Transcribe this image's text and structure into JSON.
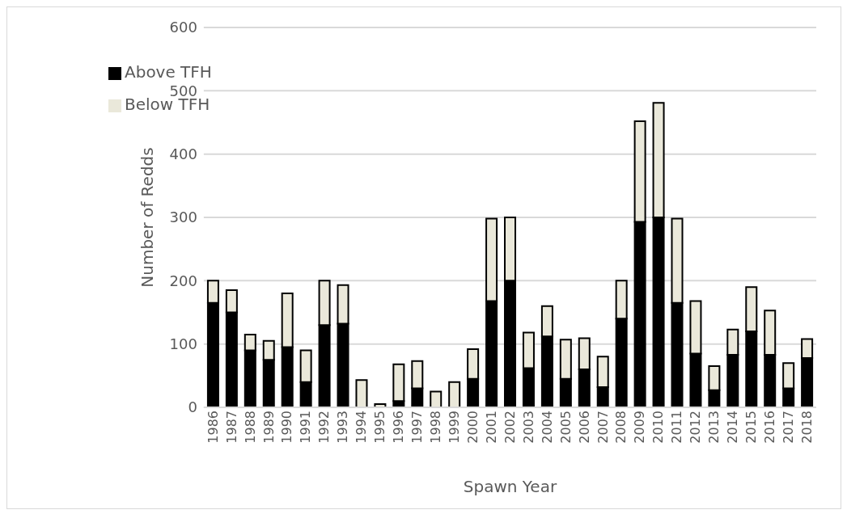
{
  "chart_data": {
    "type": "bar",
    "stacked": true,
    "xlabel": "Spawn Year",
    "ylabel": "Number of Redds",
    "categories": [
      "1986",
      "1987",
      "1988",
      "1989",
      "1990",
      "1991",
      "1992",
      "1993",
      "1994",
      "1995",
      "1996",
      "1997",
      "1998",
      "1999",
      "2000",
      "2001",
      "2002",
      "2003",
      "2004",
      "2005",
      "2006",
      "2007",
      "2008",
      "2009",
      "2010",
      "2011",
      "2012",
      "2013",
      "2014",
      "2015",
      "2016",
      "2017",
      "2018"
    ],
    "series": [
      {
        "name": "Above TFH",
        "color": "#000000",
        "values": [
          165,
          150,
          90,
          75,
          95,
          40,
          130,
          132,
          0,
          0,
          10,
          30,
          0,
          0,
          45,
          168,
          200,
          62,
          112,
          45,
          60,
          32,
          140,
          293,
          300,
          165,
          85,
          27,
          83,
          120,
          83,
          30,
          78
        ]
      },
      {
        "name": "Below TFH",
        "color": "#eae8da",
        "values": [
          35,
          35,
          25,
          30,
          85,
          50,
          70,
          61,
          43,
          5,
          58,
          43,
          25,
          40,
          47,
          130,
          100,
          56,
          48,
          62,
          49,
          48,
          60,
          159,
          181,
          133,
          83,
          38,
          40,
          70,
          70,
          40,
          30
        ]
      }
    ],
    "ylim": [
      0,
      600
    ],
    "yticks": [
      0,
      100,
      200,
      300,
      400,
      500,
      600
    ],
    "grid": "y",
    "legend": "top left"
  }
}
